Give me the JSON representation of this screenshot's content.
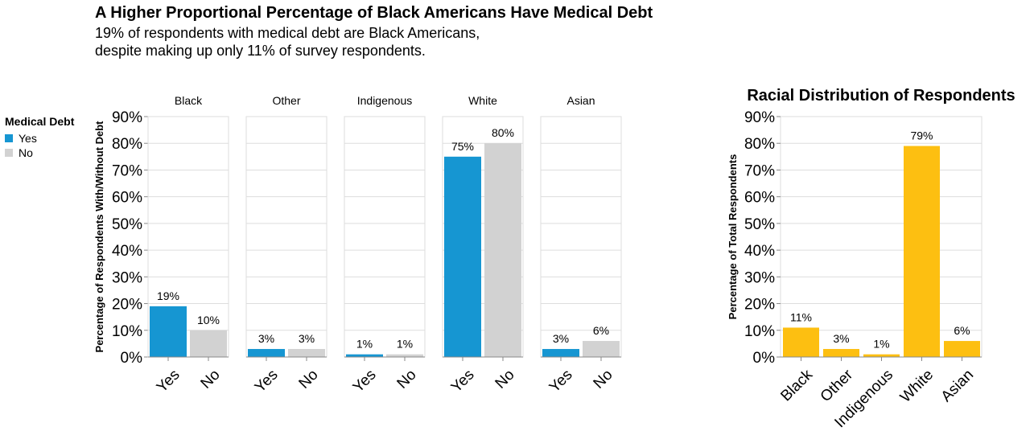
{
  "header": {
    "title": "A Higher Proportional Percentage of Black Americans Have Medical Debt",
    "subtitle_line1": "19% of respondents with medical debt are Black Americans,",
    "subtitle_line2": "despite making up only 11% of survey respondents."
  },
  "legend": {
    "title": "Medical Debt",
    "items": [
      {
        "label": "Yes",
        "color": "#1696d2"
      },
      {
        "label": "No",
        "color": "#d2d2d2"
      }
    ]
  },
  "chart_data": [
    {
      "type": "bar",
      "layout": "faceted",
      "ylabel": "Percentage of Respondents With/Without Debt",
      "ylim": [
        0,
        90
      ],
      "yticks": [
        "0%",
        "10%",
        "20%",
        "30%",
        "40%",
        "50%",
        "60%",
        "70%",
        "80%",
        "90%"
      ],
      "categories": [
        "Yes",
        "No"
      ],
      "colors": {
        "Yes": "#1696d2",
        "No": "#d2d2d2"
      },
      "facets": [
        {
          "name": "Black",
          "values": [
            19,
            10
          ],
          "labels": [
            "19%",
            "10%"
          ]
        },
        {
          "name": "Other",
          "values": [
            3,
            3
          ],
          "labels": [
            "3%",
            "3%"
          ]
        },
        {
          "name": "Indigenous",
          "values": [
            1,
            1
          ],
          "labels": [
            "1%",
            "1%"
          ]
        },
        {
          "name": "White",
          "values": [
            75,
            80
          ],
          "labels": [
            "75%",
            "80%"
          ]
        },
        {
          "name": "Asian",
          "values": [
            3,
            6
          ],
          "labels": [
            "3%",
            "6%"
          ]
        }
      ],
      "grid": true
    },
    {
      "type": "bar",
      "title": "Racial Distribution of Respondents",
      "ylabel": "Percentage of Total Respondents",
      "ylim": [
        0,
        90
      ],
      "yticks": [
        "0%",
        "10%",
        "20%",
        "30%",
        "40%",
        "50%",
        "60%",
        "70%",
        "80%",
        "90%"
      ],
      "categories": [
        "Black",
        "Other",
        "Indigenous",
        "White",
        "Asian"
      ],
      "values": [
        11,
        3,
        1,
        79,
        6
      ],
      "labels": [
        "11%",
        "3%",
        "1%",
        "79%",
        "6%"
      ],
      "color": "#fdbf11",
      "grid": true
    }
  ]
}
